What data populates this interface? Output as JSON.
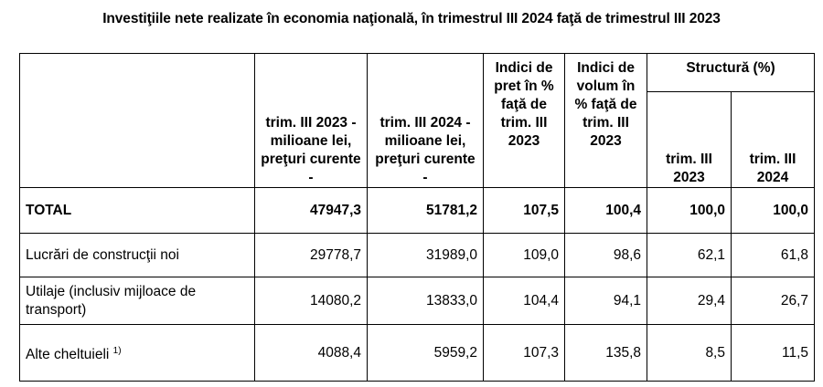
{
  "title": "Investiţiile nete realizate în economia naţională, în trimestrul III 2024 faţă de trimestrul III 2023",
  "columns": {
    "c1": "trim. III 2023 - milioane lei, preţuri curente -",
    "c2": "trim. III 2024 - milioane lei, preţuri curente -",
    "c3": "Indici de pret în % faţă de trim. III 2023",
    "c4": "Indici de volum în % faţă de trim. III 2023",
    "structure": "Structură (%)",
    "s1": "trim. III 2023",
    "s2": "trim. III 2024"
  },
  "rows": [
    {
      "label": "TOTAL",
      "note": "",
      "v": [
        "47947,3",
        "51781,2",
        "107,5",
        "100,4",
        "100,0",
        "100,0"
      ]
    },
    {
      "label": "Lucrări de construcţii noi",
      "note": "",
      "v": [
        "29778,7",
        "31989,0",
        "109,0",
        "98,6",
        "62,1",
        "61,8"
      ]
    },
    {
      "label": "Utilaje (inclusiv mijloace de transport)",
      "note": "",
      "v": [
        "14080,2",
        "13833,0",
        "104,4",
        "94,1",
        "29,4",
        "26,7"
      ]
    },
    {
      "label": "Alte cheltuieli",
      "note": "1)",
      "v": [
        "4088,4",
        "5959,2",
        "107,3",
        "135,8",
        "8,5",
        "11,5"
      ]
    }
  ]
}
